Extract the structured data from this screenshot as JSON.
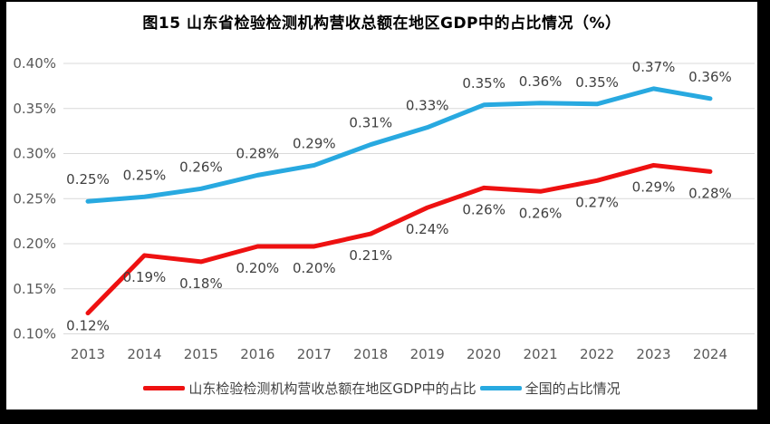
{
  "title": "图15  山东省检验检测机构营收总额在地区GDP中的占比情况（%）",
  "legend": {
    "items": [
      {
        "label": "山东检验检测机构营收总额在地区GDP中的占比",
        "color": "#ee1111"
      },
      {
        "label": "全国的占比情况",
        "color": "#28a9e0"
      }
    ]
  },
  "colors": {
    "shandong_line": "#ee1111",
    "national_line": "#28a9e0",
    "gridline": "#d9d9d9",
    "axis_text": "#595959",
    "data_label_text": "#404040",
    "frame_border": "#000000",
    "background": "#ffffff"
  },
  "chart_data": {
    "type": "line",
    "title": "图15  山东省检验检测机构营收总额在地区GDP中的占比情况（%）",
    "x_labels": [
      "2013",
      "2014",
      "2015",
      "2016",
      "2017",
      "2018",
      "2019",
      "2020",
      "2021",
      "2022",
      "2023",
      "2024"
    ],
    "y_tick_labels": [
      "0.10%",
      "0.15%",
      "0.20%",
      "0.25%",
      "0.30%",
      "0.35%",
      "0.40%"
    ],
    "ylim": [
      0.1,
      0.4
    ],
    "y_step": 0.05,
    "grid": "horizontal",
    "legend_position": "bottom",
    "series": [
      {
        "name": "山东检验检测机构营收总额在地区GDP中的占比",
        "color": "#ee1111",
        "label_side": "below",
        "values": [
          0.12,
          0.19,
          0.18,
          0.2,
          0.2,
          0.21,
          0.24,
          0.26,
          0.26,
          0.27,
          0.29,
          0.28
        ],
        "point_labels": [
          "0.12%",
          "0.19%",
          "0.18%",
          "0.20%",
          "0.20%",
          "0.21%",
          "0.24%",
          "0.26%",
          "0.26%",
          "0.27%",
          "0.29%",
          "0.28%"
        ],
        "plot_values": [
          0.123,
          0.187,
          0.18,
          0.197,
          0.197,
          0.211,
          0.24,
          0.262,
          0.258,
          0.27,
          0.287,
          0.28
        ]
      },
      {
        "name": "全国的占比情况",
        "color": "#28a9e0",
        "label_side": "above",
        "values": [
          0.25,
          0.25,
          0.26,
          0.28,
          0.29,
          0.31,
          0.33,
          0.35,
          0.36,
          0.35,
          0.37,
          0.36
        ],
        "point_labels": [
          "0.25%",
          "0.25%",
          "0.26%",
          "0.28%",
          "0.29%",
          "0.31%",
          "0.33%",
          "0.35%",
          "0.36%",
          "0.35%",
          "0.37%",
          "0.36%"
        ],
        "plot_values": [
          0.247,
          0.252,
          0.261,
          0.276,
          0.287,
          0.31,
          0.329,
          0.354,
          0.356,
          0.355,
          0.372,
          0.361
        ]
      }
    ]
  }
}
